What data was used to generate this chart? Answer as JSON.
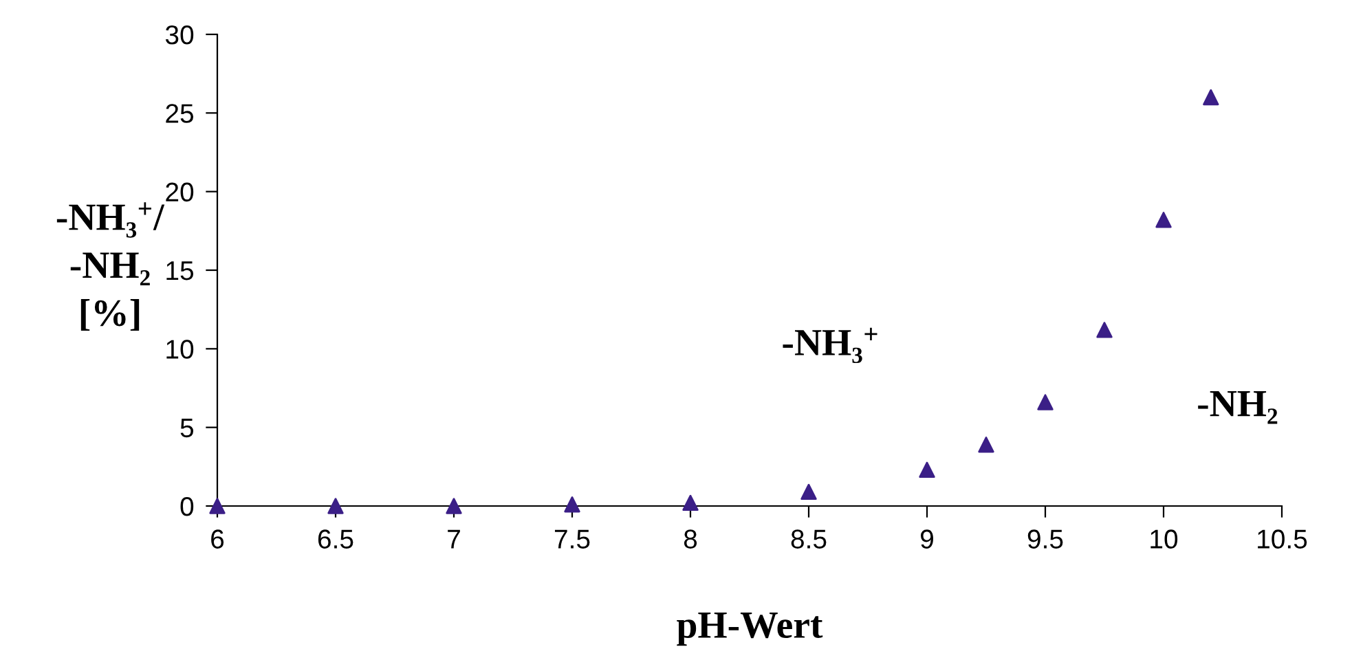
{
  "chart_data": {
    "type": "scatter",
    "xlabel": "pH-Wert",
    "ylabel": "-NH₃$^{+}$/\n-NH₂\n[%]",
    "x": [
      6,
      6.5,
      7,
      7.5,
      8,
      8.5,
      9,
      9.25,
      9.5,
      9.75,
      10,
      10.2
    ],
    "values": [
      0,
      0,
      0,
      0.1,
      0.2,
      0.9,
      2.3,
      3.9,
      6.6,
      11.2,
      18.2,
      26.0
    ],
    "color": "#3b1f87",
    "marker": "triangle",
    "grid": false,
    "legend": false,
    "xlim": [
      6,
      10.5
    ],
    "xticks": [
      6,
      6.5,
      7,
      7.5,
      8,
      8.5,
      9,
      9.5,
      10,
      10.5
    ],
    "ylim": [
      0,
      30
    ],
    "yticks": [
      0,
      5,
      10,
      15,
      20,
      25,
      30
    ],
    "annotations": [
      "-NH₃$^{+}$",
      "-NH₂"
    ]
  }
}
